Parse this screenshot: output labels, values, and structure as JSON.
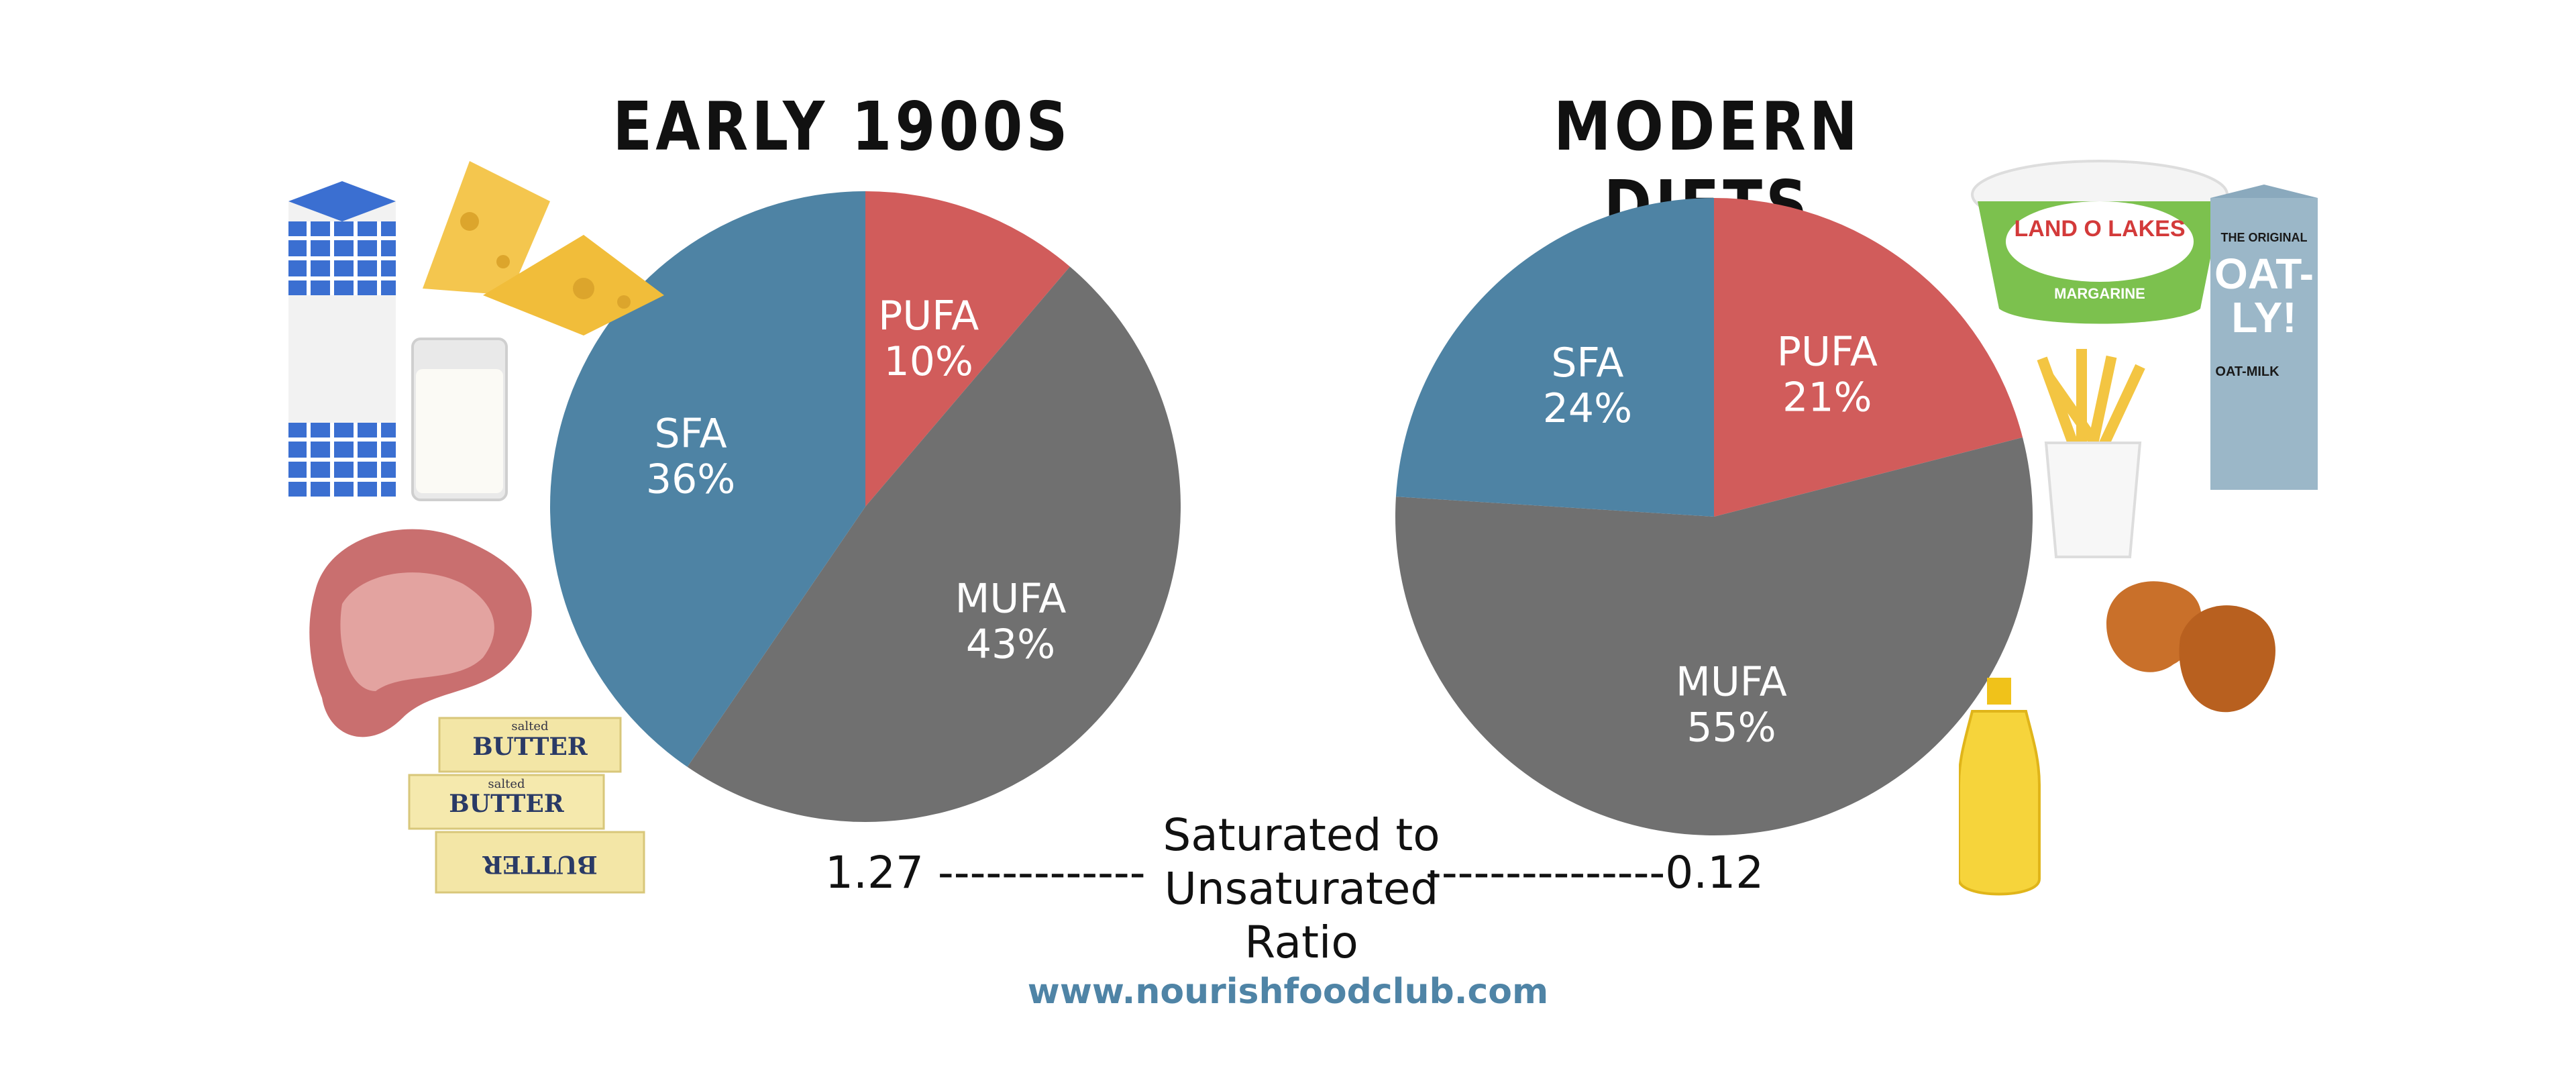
{
  "chart_data": [
    {
      "type": "pie",
      "title": "EARLY 1900S",
      "slices": [
        {
          "name": "PUFA",
          "label": "10%",
          "value": 10,
          "color": "#d15c5b"
        },
        {
          "name": "MUFA",
          "label": "43%",
          "value": 43,
          "color": "#707070"
        },
        {
          "name": "SFA",
          "label": "36%",
          "value": 36,
          "color": "#4e83a4"
        }
      ]
    },
    {
      "type": "pie",
      "title": "MODERN DIETS",
      "slices": [
        {
          "name": "PUFA",
          "label": "21%",
          "value": 21,
          "color": "#d15c5b"
        },
        {
          "name": "MUFA",
          "label": "55%",
          "value": 55,
          "color": "#707070"
        },
        {
          "name": "SFA",
          "label": "24%",
          "value": 24,
          "color": "#4e83a4"
        }
      ]
    }
  ],
  "ratio": {
    "left_text": "1.27 -------------",
    "center_line1": "Saturated to",
    "center_line2": "Unsaturated",
    "center_line3": "Ratio",
    "right_text": "---------------0.12"
  },
  "footer": {
    "website": "www.nourishfoodclub.com"
  },
  "food_labels": {
    "butter_salted": "salted",
    "butter_text": "BUTTER",
    "margarine_brand": "LAND O LAKES",
    "margarine_label": "MARGARINE",
    "oatly_top": "THE ORIGINAL",
    "oatly_word1": "OAT-",
    "oatly_word2": "LY!",
    "oatly_milk": "OAT-MILK"
  }
}
